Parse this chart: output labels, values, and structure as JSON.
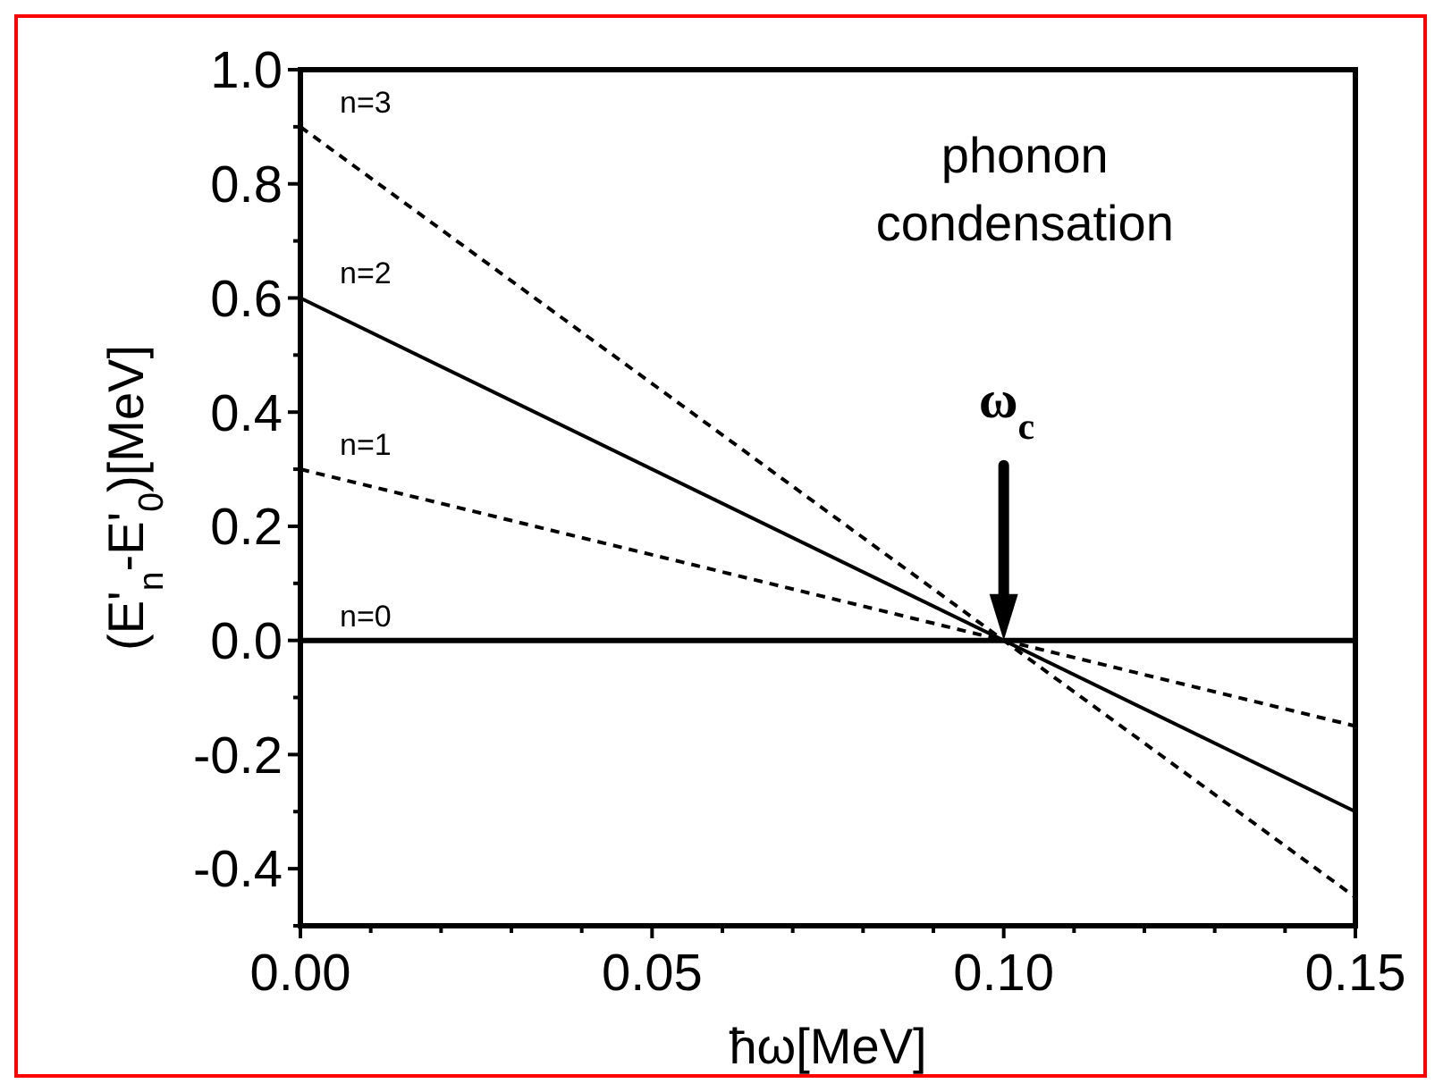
{
  "chart_data": {
    "type": "line",
    "xlabel": "ħω[MeV]",
    "ylabel": "(E'$_{n}$-E'$_{0}$)[MeV]",
    "x": [
      0,
      0.15
    ],
    "series": [
      {
        "name": "n=0",
        "color": "#000000",
        "line_style": "solid",
        "values": [
          0,
          0
        ]
      },
      {
        "name": "n=1",
        "color": "#000000",
        "line_style": "dashed",
        "values": [
          0.3,
          -0.15
        ]
      },
      {
        "name": "n=2",
        "color": "#000000",
        "line_style": "solid",
        "values": [
          0.6,
          -0.3
        ]
      },
      {
        "name": "n=3",
        "color": "#000000",
        "line_style": "dashed",
        "values": [
          0.9,
          -0.45
        ]
      }
    ],
    "xlim": [
      0,
      0.15
    ],
    "xticks": [
      {
        "value": 0,
        "label": "0.00"
      },
      {
        "value": 0.01,
        "label": null
      },
      {
        "value": 0.02,
        "label": null
      },
      {
        "value": 0.03,
        "label": null
      },
      {
        "value": 0.04,
        "label": null
      },
      {
        "value": 0.05,
        "label": "0.05"
      },
      {
        "value": 0.06,
        "label": null
      },
      {
        "value": 0.07,
        "label": null
      },
      {
        "value": 0.08,
        "label": null
      },
      {
        "value": 0.09,
        "label": null
      },
      {
        "value": 0.1,
        "label": "0.10"
      },
      {
        "value": 0.11,
        "label": null
      },
      {
        "value": 0.12,
        "label": null
      },
      {
        "value": 0.13,
        "label": null
      },
      {
        "value": 0.14,
        "label": null
      },
      {
        "value": 0.15,
        "label": "0.15"
      }
    ],
    "ylim": [
      -0.5,
      1.0
    ],
    "yticks": [
      {
        "value": -0.5,
        "label": null
      },
      -0.4,
      {
        "value": -0.3,
        "label": null
      },
      -0.2,
      {
        "value": -0.1,
        "label": null
      },
      {
        "value": 0,
        "label": "0.0"
      },
      {
        "value": 0.1,
        "label": null
      },
      0.2,
      {
        "value": 0.3,
        "label": null
      },
      0.4,
      {
        "value": 0.5,
        "label": null
      },
      0.6,
      {
        "value": 0.7,
        "label": null
      },
      0.8,
      {
        "value": 0.9,
        "label": null
      },
      {
        "value": 1,
        "label": "1.0"
      }
    ],
    "grid": false,
    "marker": "none",
    "annotations": [
      "phonon condensation",
      "ω$_{c}$"
    ]
  }
}
